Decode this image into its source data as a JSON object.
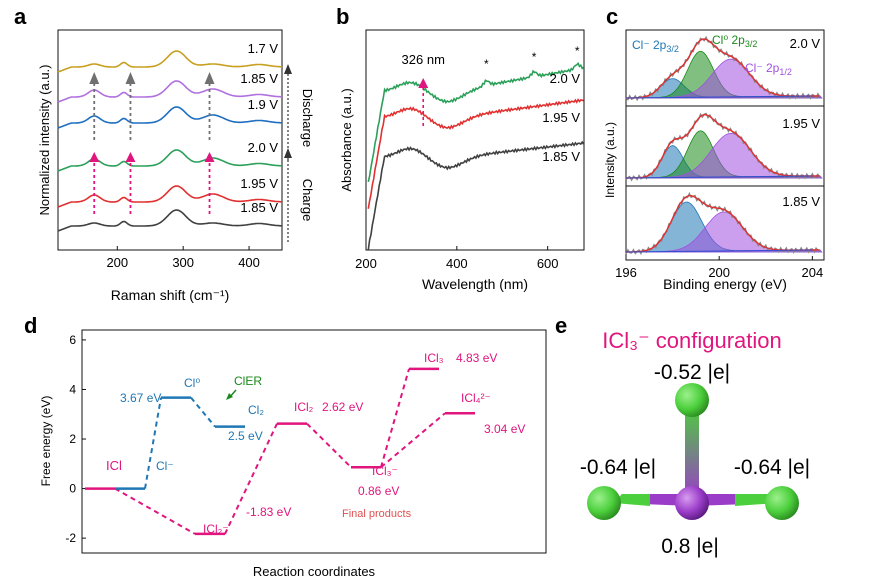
{
  "figure": {
    "panel_labels": [
      "a",
      "b",
      "c",
      "d",
      "e"
    ],
    "colors": {
      "gold": "#c8a020",
      "violet": "#b070e0",
      "blue": "#1f6fc0",
      "green": "#2ca05a",
      "red": "#e03030",
      "gray": "#404040",
      "pink": "#e0157e",
      "darkgreen": "#1a8a1a",
      "clblue": "#1f77b4",
      "purple": "#a050e0",
      "gray_arrow": "#707070",
      "axis": "#111111"
    }
  },
  "chart_data": [
    {
      "panel": "a",
      "type": "line",
      "xlabel": "Raman shift (cm⁻¹)",
      "ylabel": "Normalized intensity (a.u.)",
      "xlim": [
        110,
        450
      ],
      "xticks": [
        200,
        300,
        400
      ],
      "series": [
        {
          "name": "1.85 V",
          "label": "1.85 V",
          "offset": 0.0,
          "color": "gray"
        },
        {
          "name": "1.95 V",
          "label": "1.95 V",
          "offset": 1.0,
          "color": "red"
        },
        {
          "name": "2.0 V",
          "label": "2.0 V",
          "offset": 2.0,
          "color": "green"
        },
        {
          "name": "1.9 V",
          "label": "1.9 V",
          "offset": 3.2,
          "color": "blue"
        },
        {
          "name": "1.85 V",
          "label": "1.85 V",
          "offset": 4.3,
          "color": "violet"
        },
        {
          "name": "1.7 V",
          "label": "1.7 V",
          "offset": 5.4,
          "color": "gold"
        }
      ],
      "peaks_cm1": [
        165,
        210,
        290,
        345
      ],
      "arrow_positions_cm1": [
        165,
        220,
        340
      ],
      "process_labels": {
        "discharge": "Discharge",
        "charge": "Charge"
      }
    },
    {
      "panel": "b",
      "type": "line",
      "xlabel": "Wavelength (nm)",
      "ylabel": "Absorbance (a.u.)",
      "xlim": [
        200,
        680
      ],
      "xticks": [
        200,
        400,
        600
      ],
      "series": [
        {
          "name": "1.85 V",
          "label": "1.85 V",
          "color": "gray"
        },
        {
          "name": "1.95 V",
          "label": "1.95 V",
          "color": "red"
        },
        {
          "name": "2.0 V",
          "label": "2.0 V",
          "color": "green"
        }
      ],
      "annotation": "326 nm",
      "annotation_x_nm": 326,
      "stars_nm": [
        465,
        570,
        665
      ],
      "star_symbol": "*"
    },
    {
      "panel": "c",
      "type": "line",
      "xlabel": "Binding energy (eV)",
      "ylabel": "Intensity (a.u.)",
      "xlim": [
        196,
        204.5
      ],
      "xticks": [
        196,
        200,
        204
      ],
      "components": {
        "cl_minus_32": "Cl⁻ 2p₃/₂",
        "cl0_32": "Cl⁰ 2p₃/₂",
        "cl_minus_12": "Cl⁻ 2p₁/₂"
      },
      "legend": {
        "cl_minus": "Cl⁻ 2p",
        "cl_minus_sub": "3/2",
        "cl0": "Cl⁰ 2p",
        "cl0_sub": "3/2",
        "cl_minus_b": "Cl⁻ 2p",
        "cl_minus_b_sub": "1/2"
      },
      "subplots": [
        {
          "label": "2.0 V",
          "peaks": [
            {
              "center": 198.0,
              "amp": 0.35,
              "sigma": 0.5,
              "color": "clblue"
            },
            {
              "center": 199.2,
              "amp": 0.85,
              "sigma": 0.55,
              "color": "darkgreen"
            },
            {
              "center": 200.5,
              "amp": 0.7,
              "sigma": 0.8,
              "color": "purple"
            }
          ]
        },
        {
          "label": "1.95 V",
          "peaks": [
            {
              "center": 198.0,
              "amp": 0.55,
              "sigma": 0.45,
              "color": "clblue"
            },
            {
              "center": 199.2,
              "amp": 0.8,
              "sigma": 0.55,
              "color": "darkgreen"
            },
            {
              "center": 200.5,
              "amp": 0.75,
              "sigma": 0.85,
              "color": "purple"
            }
          ]
        },
        {
          "label": "1.85 V",
          "peaks": [
            {
              "center": 198.6,
              "amp": 0.95,
              "sigma": 0.65,
              "color": "clblue"
            },
            {
              "center": 200.2,
              "amp": 0.75,
              "sigma": 0.8,
              "color": "purple"
            }
          ]
        }
      ]
    },
    {
      "panel": "d",
      "type": "line",
      "xlabel": "Reaction coordinates",
      "ylabel": "Free energy (eV)",
      "ylim": [
        -2.6,
        6.4
      ],
      "yticks": [
        -2,
        0,
        2,
        4,
        6
      ],
      "levels": [
        {
          "id": "ICl",
          "label": "ICl",
          "x": 0.0,
          "y": 0.0,
          "color": "pink"
        },
        {
          "id": "Clm",
          "label": "Cl⁻",
          "x": 1.0,
          "y": 0.0,
          "color": "clblue"
        },
        {
          "id": "Cl0",
          "label": "Cl⁰",
          "x": 2.0,
          "y": 3.67,
          "color": "clblue",
          "energy": "3.67 eV"
        },
        {
          "id": "ICl2m",
          "label": "ICl₂⁻",
          "x": 2.5,
          "y": -1.83,
          "color": "pink",
          "energy": "-1.83 eV"
        },
        {
          "id": "Cl2",
          "label": "Cl₂",
          "x": 3.0,
          "y": 2.5,
          "color": "clblue",
          "energy": "2.5 eV"
        },
        {
          "id": "ICl2",
          "label": "ICl₂",
          "x": 4.0,
          "y": 2.62,
          "color": "pink",
          "energy": "2.62 eV"
        },
        {
          "id": "ICl3m",
          "label": "ICl₃⁻",
          "x": 5.3,
          "y": 0.86,
          "color": "pink",
          "energy": "0.86 eV"
        },
        {
          "id": "ICl3",
          "label": "ICl₃",
          "x": 6.2,
          "y": 4.83,
          "color": "pink",
          "energy": "4.83 eV"
        },
        {
          "id": "ICl4",
          "label": "ICl₄²⁻",
          "x": 7.0,
          "y": 3.04,
          "color": "pink",
          "energy": "3.04 eV"
        }
      ],
      "connections": [
        {
          "from": "ICl",
          "to": "ICl2m",
          "color": "pink"
        },
        {
          "from": "Clm",
          "to": "Cl0",
          "color": "clblue"
        },
        {
          "from": "Cl0",
          "to": "Cl2",
          "color": "clblue"
        },
        {
          "from": "ICl2m",
          "to": "ICl2",
          "color": "pink"
        },
        {
          "from": "ICl2",
          "to": "ICl3m",
          "color": "pink"
        },
        {
          "from": "ICl3m",
          "to": "ICl3",
          "color": "pink"
        },
        {
          "from": "ICl3m",
          "to": "ICl4",
          "color": "pink"
        }
      ],
      "annotations": {
        "cler": "ClER",
        "final_products": "Final products"
      },
      "labels": {
        "icl": "ICl",
        "clm": "Cl⁻",
        "cl0": "Cl⁰",
        "cl2": "Cl₂",
        "icl2m": "ICl₂⁻",
        "icl2": "ICl₂",
        "icl3m": "ICl₃⁻",
        "icl3": "ICl₃",
        "icl4": "ICl₄²⁻",
        "e_cl0": "3.67 eV",
        "e_cl2": "2.5 eV",
        "e_icl2m": "-1.83 eV",
        "e_icl2": "2.62 eV",
        "e_icl3m": "0.86 eV",
        "e_icl3": "4.83 eV",
        "e_icl4": "3.04 eV"
      }
    }
  ],
  "panel_e": {
    "title": "ICl₃⁻ configuration",
    "charges": {
      "top": "-0.52 |e|",
      "left": "-0.64 |e|",
      "right": "-0.64 |e|",
      "center": "0.8 |e|"
    }
  }
}
